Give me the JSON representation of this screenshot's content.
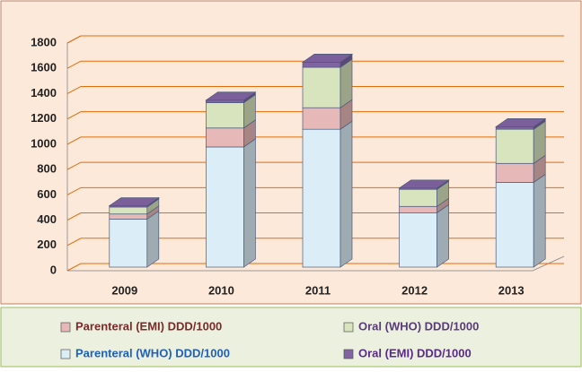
{
  "chart_data": {
    "type": "bar3d_stacked",
    "categories": [
      "2009",
      "2010",
      "2011",
      "2012",
      "2013"
    ],
    "series": [
      {
        "name": "Parenteral (WHO) DDD/1000",
        "color": "#dbeef7",
        "label_color": "#1f5fbf",
        "values": [
          380,
          950,
          1090,
          430,
          670
        ]
      },
      {
        "name": "Parenteral (EMI) DDD/1000",
        "color": "#e6b9b8",
        "label_color": "#7a2a2a",
        "values": [
          40,
          150,
          170,
          50,
          150
        ]
      },
      {
        "name": "Oral (WHO) DDD/1000",
        "color": "#d7e4bd",
        "label_color": "#5a3a7a",
        "values": [
          55,
          200,
          320,
          135,
          270
        ]
      },
      {
        "name": "Oral (EMI) DDD/1000",
        "color": "#8064a2",
        "label_color": "#5a2a8a",
        "values": [
          10,
          20,
          40,
          10,
          20
        ]
      }
    ],
    "ylim": [
      0,
      1800
    ],
    "yticks": [
      0,
      200,
      400,
      600,
      800,
      1000,
      1200,
      1400,
      1600,
      1800
    ],
    "grid": true,
    "grid_color": "#e46c0a",
    "background": "#fde9d9",
    "legend_background": "#ebf1de"
  }
}
